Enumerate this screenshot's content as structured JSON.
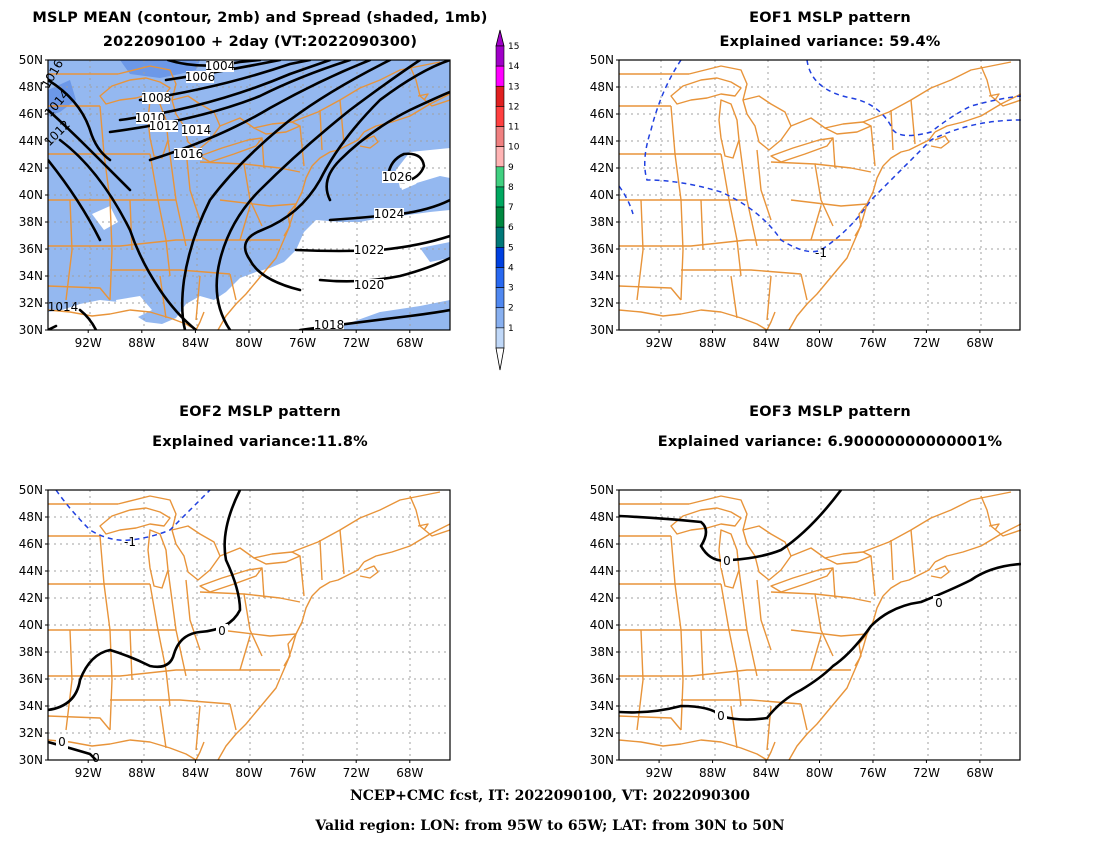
{
  "panel1": {
    "title": "MSLP MEAN (contour, 2mb) and Spread (shaded, 1mb)",
    "subtitle": "2022090100 + 2day (VT:2022090300)",
    "contour_labels": [
      "1004",
      "1006",
      "1008",
      "1010",
      "1012",
      "1014",
      "1016",
      "1026",
      "1024",
      "1022",
      "1020",
      "1018",
      "1014",
      "1016",
      "1014",
      "1012"
    ]
  },
  "panel2": {
    "title": "EOF1 MSLP pattern",
    "subtitle": "Explained variance: 59.4%",
    "contour_labels": [
      "-1"
    ]
  },
  "panel3": {
    "title": "EOF2 MSLP pattern",
    "subtitle": "Explained variance:11.8%",
    "contour_labels": [
      "0",
      "0",
      "0",
      "-1"
    ]
  },
  "panel4": {
    "title": "EOF3 MSLP pattern",
    "subtitle": "Explained variance: 6.90000000000001%",
    "contour_labels": [
      "0",
      "0",
      "0"
    ]
  },
  "axes": {
    "lat_labels": [
      "50N",
      "48N",
      "46N",
      "44N",
      "42N",
      "40N",
      "38N",
      "36N",
      "34N",
      "32N",
      "30N"
    ],
    "lon_labels": [
      "92W",
      "88W",
      "84W",
      "80W",
      "76W",
      "72W",
      "68W"
    ],
    "lon_range": [
      -95,
      -65
    ],
    "lat_range": [
      30,
      50
    ]
  },
  "colorbar": {
    "labels": [
      "15",
      "14",
      "13",
      "12",
      "11",
      "10",
      "9",
      "8",
      "7",
      "6",
      "5",
      "4",
      "3",
      "2",
      "1"
    ],
    "colors": [
      "#a000c8",
      "#ff00ff",
      "#e02020",
      "#ff4040",
      "#f08080",
      "#ffb4b4",
      "#40d080",
      "#00a860",
      "#008840",
      "#007878",
      "#0040e0",
      "#2868f0",
      "#5088f0",
      "#88b0f0",
      "#c0d8f8"
    ]
  },
  "colors": {
    "coastline": "#e8943a",
    "positive_contour": "#000000",
    "negative_contour": "#2040e0",
    "shade": "#94b8f0"
  },
  "footer": {
    "line1": "NCEP+CMC fcst, IT: 2022090100, VT: 2022090300",
    "line2": "Valid region: LON: from 95W to 65W; LAT: from 30N to 50N"
  }
}
